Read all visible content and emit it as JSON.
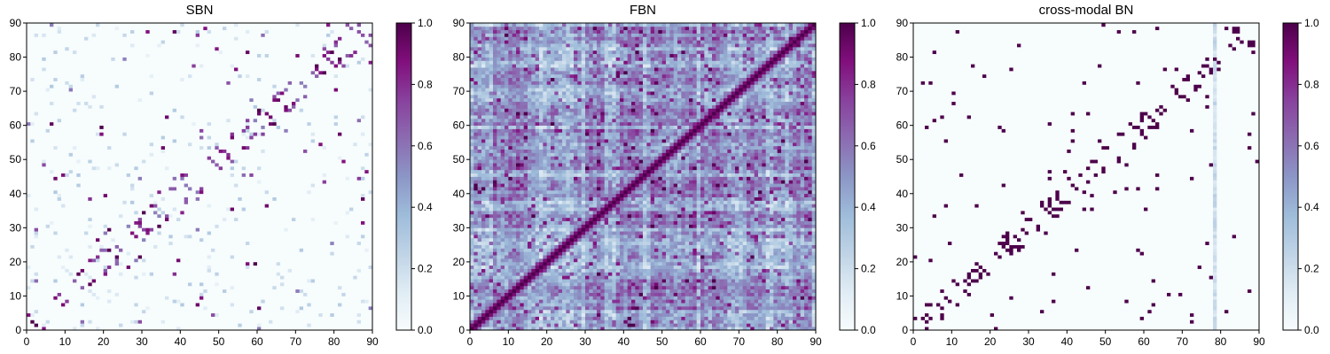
{
  "chart_data": [
    {
      "type": "heatmap",
      "title": "SBN",
      "kind": "sparse",
      "seed": 11,
      "n": 90,
      "xlim": [
        0,
        90
      ],
      "ylim": [
        0,
        90
      ],
      "xticks": [
        0,
        10,
        20,
        30,
        40,
        50,
        60,
        70,
        80,
        90
      ],
      "yticks": [
        0,
        10,
        20,
        30,
        40,
        50,
        60,
        70,
        80,
        90
      ],
      "colorbar": {
        "range": [
          0.0,
          1.0
        ],
        "ticks": [
          "0.0",
          "0.2",
          "0.4",
          "0.6",
          "0.8",
          "1.0"
        ]
      },
      "colormap": "BuPu"
    },
    {
      "type": "heatmap",
      "title": "FBN",
      "kind": "dense",
      "seed": 29,
      "n": 90,
      "xlim": [
        0,
        90
      ],
      "ylim": [
        0,
        90
      ],
      "xticks": [
        0,
        10,
        20,
        30,
        40,
        50,
        60,
        70,
        80,
        90
      ],
      "yticks": [
        0,
        10,
        20,
        30,
        40,
        50,
        60,
        70,
        80,
        90
      ],
      "colorbar": {
        "range": [
          0.0,
          1.0
        ],
        "ticks": [
          "0.0",
          "0.2",
          "0.4",
          "0.6",
          "0.8",
          "1.0"
        ]
      },
      "colormap": "BuPu"
    },
    {
      "type": "heatmap",
      "title": "cross-modal BN",
      "kind": "sparse-binary",
      "seed": 47,
      "n": 90,
      "xlim": [
        0,
        90
      ],
      "ylim": [
        0,
        90
      ],
      "xticks": [
        0,
        10,
        20,
        30,
        40,
        50,
        60,
        70,
        80,
        90
      ],
      "yticks": [
        0,
        10,
        20,
        30,
        40,
        50,
        60,
        70,
        80,
        90
      ],
      "colorbar": {
        "range": [
          0.0,
          1.0
        ],
        "ticks": [
          "0.0",
          "0.2",
          "0.4",
          "0.6",
          "0.8",
          "1.0"
        ]
      },
      "colormap": "BuPu",
      "highlight_column": 78
    }
  ]
}
